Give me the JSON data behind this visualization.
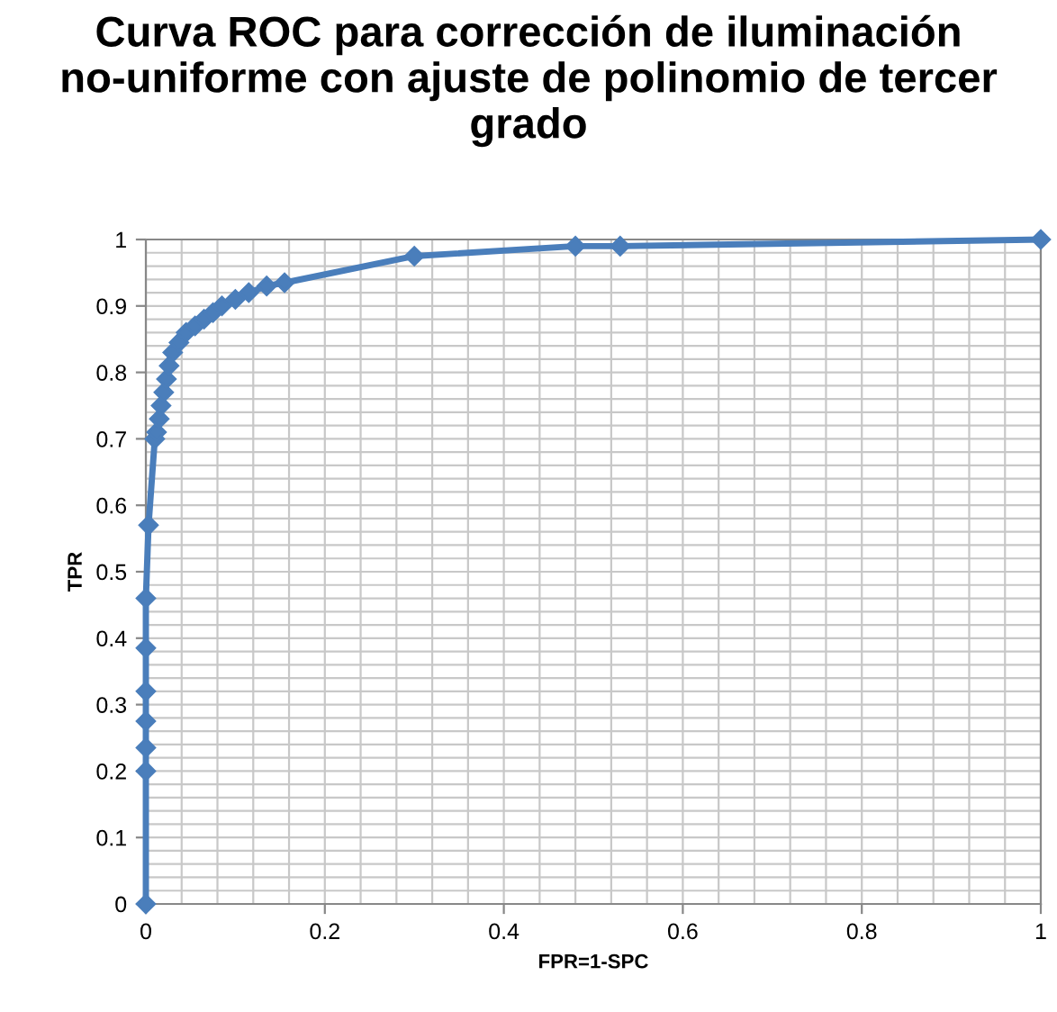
{
  "chart_data": {
    "type": "line",
    "title": "Curva ROC para corrección de iluminación no-uniforme con ajuste de polinomio de tercer grado",
    "xlabel": "FPR=1-SPC",
    "ylabel": "TPR",
    "series": [
      {
        "color": "#4a7ebb",
        "x": [
          0,
          0,
          0,
          0,
          0,
          0,
          0,
          0.003,
          0.01,
          0.012,
          0.015,
          0.017,
          0.02,
          0.023,
          0.026,
          0.03,
          0.037,
          0.045,
          0.055,
          0.065,
          0.075,
          0.085,
          0.1,
          0.115,
          0.135,
          0.155,
          0.3,
          0.48,
          0.53,
          1
        ],
        "values": [
          0,
          0.2,
          0.235,
          0.275,
          0.32,
          0.385,
          0.46,
          0.57,
          0.7,
          0.71,
          0.73,
          0.75,
          0.77,
          0.79,
          0.81,
          0.83,
          0.845,
          0.86,
          0.87,
          0.88,
          0.89,
          0.9,
          0.91,
          0.92,
          0.93,
          0.935,
          0.975,
          0.99,
          0.99,
          1
        ]
      }
    ],
    "xlim": [
      0,
      1
    ],
    "ylim": [
      0,
      1
    ],
    "xticks": [
      0,
      0.2,
      0.4,
      0.6,
      0.8,
      1
    ],
    "yticks": [
      0,
      0.1,
      0.2,
      0.3,
      0.4,
      0.5,
      0.6,
      0.7,
      0.8,
      0.9,
      1
    ],
    "grid": true,
    "marker": "diamond",
    "line_style": "solid",
    "legend": false
  }
}
